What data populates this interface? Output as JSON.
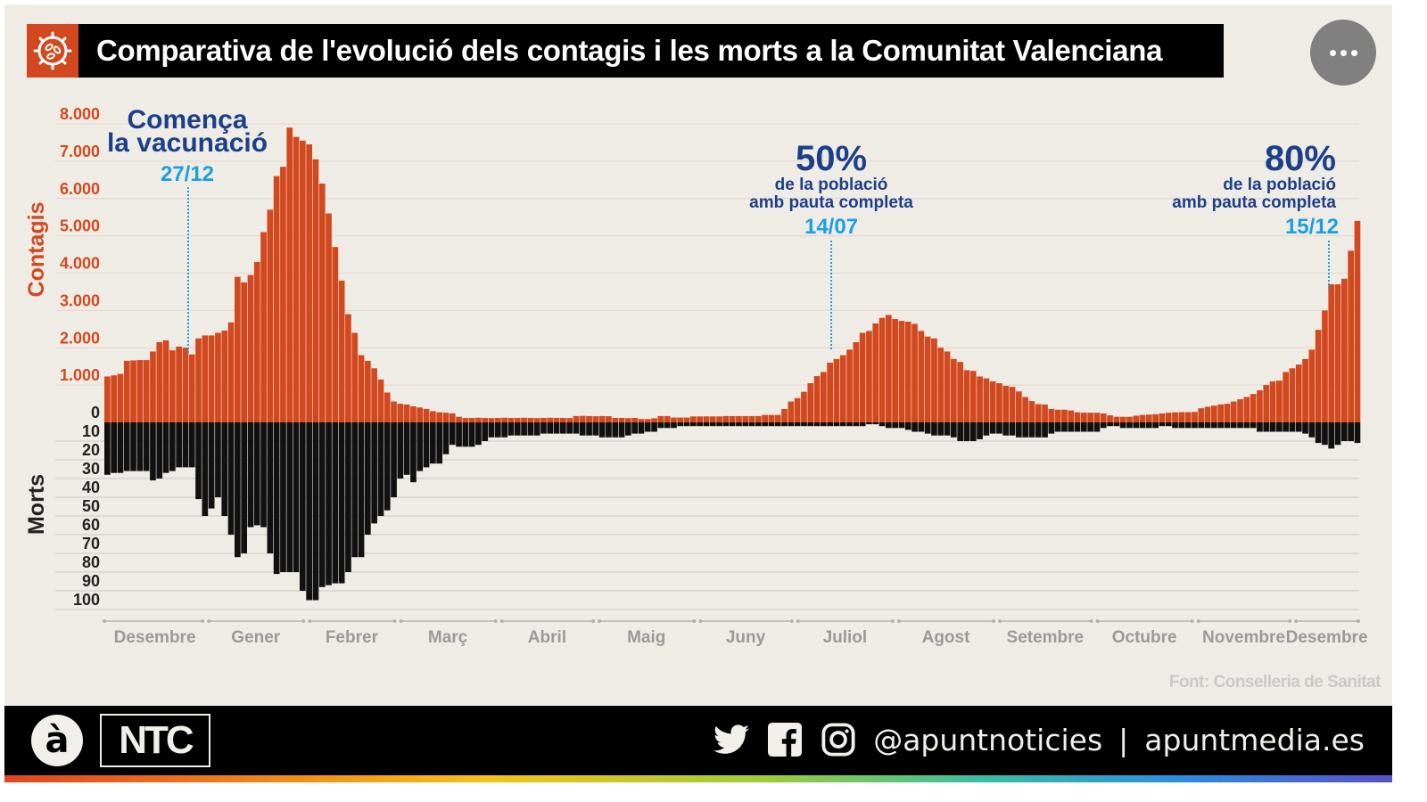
{
  "header": {
    "title": "Comparativa de l'evolució dels contagis i les morts a la Comunitat Valenciana",
    "icon": "virus-icon",
    "more_button_icon": "more-dots-icon"
  },
  "source": "Font: Conselleria de Sanitat",
  "footer": {
    "logo_a": "à",
    "logo_ntc": "NTC",
    "handle": "@apuntnoticies",
    "separator": "|",
    "website": "apuntmedia.es",
    "icons": [
      "twitter-icon",
      "facebook-icon",
      "instagram-icon"
    ]
  },
  "colors": {
    "contagis": "#d2491f",
    "morts": "#111111",
    "annotation": "#1c3f8a",
    "annotation_date": "#1aa0e0",
    "background": "#efece6"
  },
  "chart_data": {
    "type": "bar",
    "title": "Comparativa de l'evolució dels contagis i les morts a la Comunitat Valenciana",
    "x_tick_labels": [
      "Desembre",
      "Gener",
      "Febrer",
      "Març",
      "Abril",
      "Maig",
      "Juny",
      "Juliol",
      "Agost",
      "Setembre",
      "Octubre",
      "Novembre",
      "Desembre"
    ],
    "x_range": [
      "2020-12-01",
      "2021-12-21"
    ],
    "x_step_days": 2,
    "grid": true,
    "series": [
      {
        "name": "Contagis",
        "axis_label": "Contagis",
        "direction": "up",
        "ylim": [
          0,
          8000
        ],
        "tick_labels": [
          "0",
          "1.000",
          "2.000",
          "3.000",
          "4.000",
          "5.000",
          "6.000",
          "7.000",
          "8.000"
        ],
        "values": [
          1230,
          1260,
          1300,
          1650,
          1660,
          1670,
          1670,
          1900,
          2150,
          2200,
          1930,
          2030,
          2000,
          1820,
          2250,
          2330,
          2330,
          2400,
          2460,
          2680,
          3900,
          3750,
          3950,
          4300,
          5100,
          5700,
          6600,
          6850,
          7900,
          7650,
          7550,
          7450,
          7050,
          6400,
          5600,
          4700,
          3800,
          2900,
          2400,
          1800,
          1650,
          1450,
          1150,
          800,
          560,
          500,
          480,
          430,
          400,
          360,
          300,
          270,
          260,
          240,
          150,
          120,
          120,
          125,
          120,
          115,
          120,
          125,
          120,
          120,
          125,
          120,
          115,
          120,
          125,
          120,
          120,
          115,
          170,
          175,
          170,
          165,
          170,
          165,
          120,
          120,
          115,
          120,
          90,
          90,
          110,
          170,
          170,
          130,
          130,
          130,
          160,
          160,
          160,
          160,
          160,
          170,
          170,
          170,
          170,
          170,
          170,
          200,
          200,
          200,
          360,
          560,
          650,
          820,
          1050,
          1240,
          1350,
          1600,
          1700,
          1800,
          1950,
          2150,
          2400,
          2450,
          2650,
          2800,
          2880,
          2770,
          2720,
          2700,
          2640,
          2450,
          2300,
          2250,
          2000,
          1900,
          1700,
          1620,
          1400,
          1380,
          1230,
          1180,
          1100,
          1050,
          980,
          950,
          830,
          680,
          570,
          490,
          480,
          360,
          340,
          340,
          320,
          270,
          260,
          260,
          260,
          240,
          190,
          150,
          150,
          150,
          180,
          200,
          210,
          220,
          240,
          260,
          270,
          275,
          275,
          280,
          380,
          420,
          450,
          480,
          500,
          560,
          620,
          680,
          760,
          860,
          1000,
          1100,
          1120,
          1350,
          1450,
          1550,
          1700,
          1950,
          2480,
          3000,
          3700,
          3700,
          3850,
          4600,
          5400
        ]
      },
      {
        "name": "Morts",
        "axis_label": "Morts",
        "direction": "down",
        "ylim": [
          0,
          100
        ],
        "tick_labels": [
          "10",
          "20",
          "30",
          "40",
          "50",
          "60",
          "70",
          "80",
          "90",
          "100"
        ],
        "values": [
          28,
          27,
          27,
          26,
          26,
          26,
          26,
          31,
          30,
          27,
          26,
          24,
          24,
          24,
          41,
          50,
          46,
          40,
          50,
          60,
          72,
          70,
          56,
          55,
          56,
          70,
          81,
          80,
          80,
          80,
          90,
          95,
          95,
          88,
          87,
          86,
          86,
          80,
          72,
          72,
          60,
          54,
          50,
          47,
          40,
          30,
          28,
          32,
          26,
          24,
          22,
          22,
          17,
          12,
          13,
          13,
          13,
          12,
          10,
          8,
          8,
          8,
          7,
          7,
          7,
          7,
          7,
          6,
          6,
          6,
          6,
          6,
          6,
          7,
          7,
          7,
          8,
          8,
          8,
          8,
          7,
          6,
          6,
          5,
          5,
          3,
          3,
          3,
          2,
          2,
          2,
          2,
          2,
          2,
          2,
          2,
          2,
          2,
          2,
          2,
          2,
          2,
          2,
          2,
          2,
          2,
          2,
          2,
          2,
          2,
          2,
          2,
          2,
          2,
          2,
          2,
          2,
          1,
          1,
          2,
          3,
          3,
          3,
          4,
          5,
          5,
          6,
          7,
          7,
          7,
          8,
          10,
          10,
          10,
          9,
          7,
          6,
          6,
          7,
          7,
          8,
          8,
          8,
          8,
          8,
          6,
          5,
          5,
          5,
          5,
          5,
          5,
          5,
          3,
          2,
          2,
          3,
          3,
          3,
          3,
          3,
          3,
          2,
          2,
          3,
          3,
          3,
          3,
          3,
          3,
          3,
          3,
          3,
          3,
          3,
          3,
          3,
          5,
          5,
          5,
          5,
          5,
          5,
          5,
          6,
          8,
          11,
          12,
          14,
          12,
          10,
          10,
          11
        ]
      }
    ],
    "annotations": [
      {
        "date": "27/12",
        "heading": "Comença",
        "line2": "la vacunació",
        "label": "27/12"
      },
      {
        "date": "14/07",
        "heading": "50%",
        "line1": "de la població",
        "line2": "amb pauta completa",
        "label": "14/07"
      },
      {
        "date": "15/12",
        "heading": "80%",
        "line1": "de la població",
        "line2": "amb pauta completa",
        "label": "15/12"
      }
    ]
  }
}
